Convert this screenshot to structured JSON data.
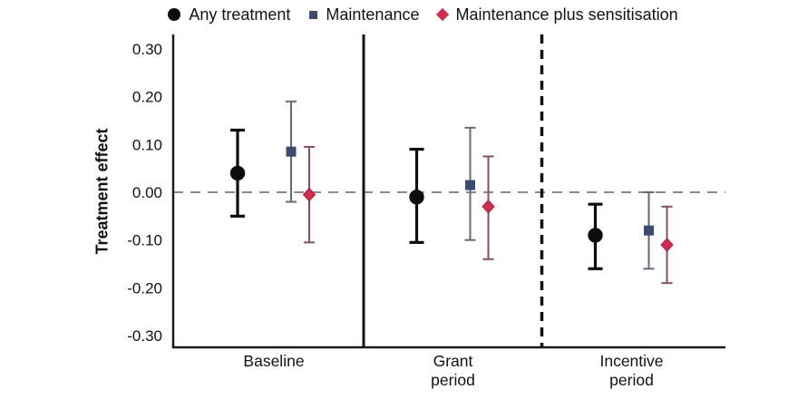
{
  "figure": {
    "background": "#ffffff"
  },
  "colors": {
    "axis": "#1a1a1a",
    "text": "#121212",
    "zero_line": "#8d8894",
    "separator": "#111111",
    "any_treatment": "#0d0d0d",
    "maintenance": "#3e4a72",
    "maintenance_whisker": "#646a78",
    "sensitisation": "#d42a4d",
    "sensitisation_whisker": "#84505c"
  },
  "legend": {
    "position": "top",
    "items": [
      {
        "label": "Any treatment",
        "marker": "circle",
        "color": "#0d0d0d"
      },
      {
        "label": "Maintenance",
        "marker": "square",
        "color": "#3e4a72"
      },
      {
        "label": "Maintenance plus sensitisation",
        "marker": "diamond",
        "color": "#d42a4d"
      }
    ]
  },
  "chart_data": {
    "type": "scatter",
    "subtype": "point-estimates-with-confidence-intervals",
    "title": "",
    "xlabel": "",
    "ylabel": "Treatment effect",
    "ylim": [
      -0.3,
      0.3
    ],
    "grid": false,
    "zero_reference_line": true,
    "categories": [
      "Baseline",
      "Grant period",
      "Incentive period"
    ],
    "xtick_lines": [
      [
        "Baseline"
      ],
      [
        "Grant",
        "period"
      ],
      [
        "Incentive",
        "period"
      ]
    ],
    "yticks": [
      {
        "value": 0.3,
        "label": "0.30"
      },
      {
        "value": 0.2,
        "label": "0.20"
      },
      {
        "value": 0.1,
        "label": "0.10"
      },
      {
        "value": 0.0,
        "label": "0.00"
      },
      {
        "value": -0.1,
        "label": "-0.10"
      },
      {
        "value": -0.2,
        "label": "-0.20"
      },
      {
        "value": -0.3,
        "label": "-0.30"
      }
    ],
    "separators": [
      {
        "between": [
          "Baseline",
          "Grant period"
        ],
        "style": "solid"
      },
      {
        "between": [
          "Grant period",
          "Incentive period"
        ],
        "style": "dashed"
      }
    ],
    "series": [
      {
        "name": "Any treatment",
        "marker": "circle",
        "color": "#0d0d0d",
        "whisker_color": "#0d0d0d",
        "values": [
          0.04,
          -0.01,
          -0.09
        ],
        "ci_low": [
          -0.05,
          -0.105,
          -0.16
        ],
        "ci_high": [
          0.13,
          0.09,
          -0.025
        ]
      },
      {
        "name": "Maintenance",
        "marker": "square",
        "color": "#3e4a72",
        "whisker_color": "#646a78",
        "values": [
          0.085,
          0.015,
          -0.08
        ],
        "ci_low": [
          -0.02,
          -0.1,
          -0.16
        ],
        "ci_high": [
          0.19,
          0.135,
          0.0
        ]
      },
      {
        "name": "Maintenance plus sensitisation",
        "marker": "diamond",
        "color": "#d42a4d",
        "whisker_color": "#84505c",
        "values": [
          -0.005,
          -0.03,
          -0.11
        ],
        "ci_low": [
          -0.105,
          -0.14,
          -0.19
        ],
        "ci_high": [
          0.095,
          0.075,
          -0.03
        ]
      }
    ]
  }
}
